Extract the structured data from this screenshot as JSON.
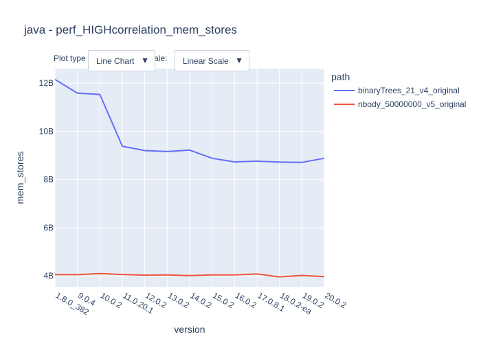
{
  "title": "java - perf_HIGHcorrelation_mem_stores",
  "controls": {
    "plot_type_label": "Plot type",
    "plot_type_value": "Line Chart",
    "scale_label": "Scale:",
    "scale_value": "Linear Scale",
    "arrow": "▼"
  },
  "legend": {
    "title": "path"
  },
  "colors": {
    "binaryTrees": "#636efa",
    "nbody": "#ef553b",
    "plot_bg": "#e5ecf6",
    "grid": "#ffffff",
    "text": "#2a3f5f"
  },
  "chart_data": {
    "type": "line",
    "title": "java - perf_HIGHcorrelation_mem_stores",
    "xlabel": "version",
    "ylabel": "mem_stores",
    "categories": [
      "1.8.0_382",
      "9.0.4",
      "10.0.2",
      "11.0.20.1",
      "12.0.2",
      "13.0.2",
      "14.0.2",
      "15.0.2",
      "16.0.2",
      "17.0.8.1",
      "18.0.2-ea",
      "19.0.2",
      "20.0.2"
    ],
    "ylim": [
      3.55,
      12.6
    ],
    "yticks": [
      4,
      6,
      8,
      10,
      12
    ],
    "ytick_labels": [
      "4B",
      "6B",
      "8B",
      "10B",
      "12B"
    ],
    "grid": true,
    "legend_position": "right",
    "series": [
      {
        "name": "binaryTrees_21_v4_original",
        "color": "#636efa",
        "values": [
          12.15,
          11.58,
          11.53,
          9.38,
          9.2,
          9.16,
          9.22,
          8.88,
          8.73,
          8.76,
          8.72,
          8.71,
          8.88
        ]
      },
      {
        "name": "nbody_50000000_v5_original",
        "color": "#ef553b",
        "values": [
          4.05,
          4.05,
          4.1,
          4.06,
          4.03,
          4.04,
          4.01,
          4.04,
          4.04,
          4.08,
          3.96,
          4.02,
          3.97
        ]
      }
    ]
  }
}
